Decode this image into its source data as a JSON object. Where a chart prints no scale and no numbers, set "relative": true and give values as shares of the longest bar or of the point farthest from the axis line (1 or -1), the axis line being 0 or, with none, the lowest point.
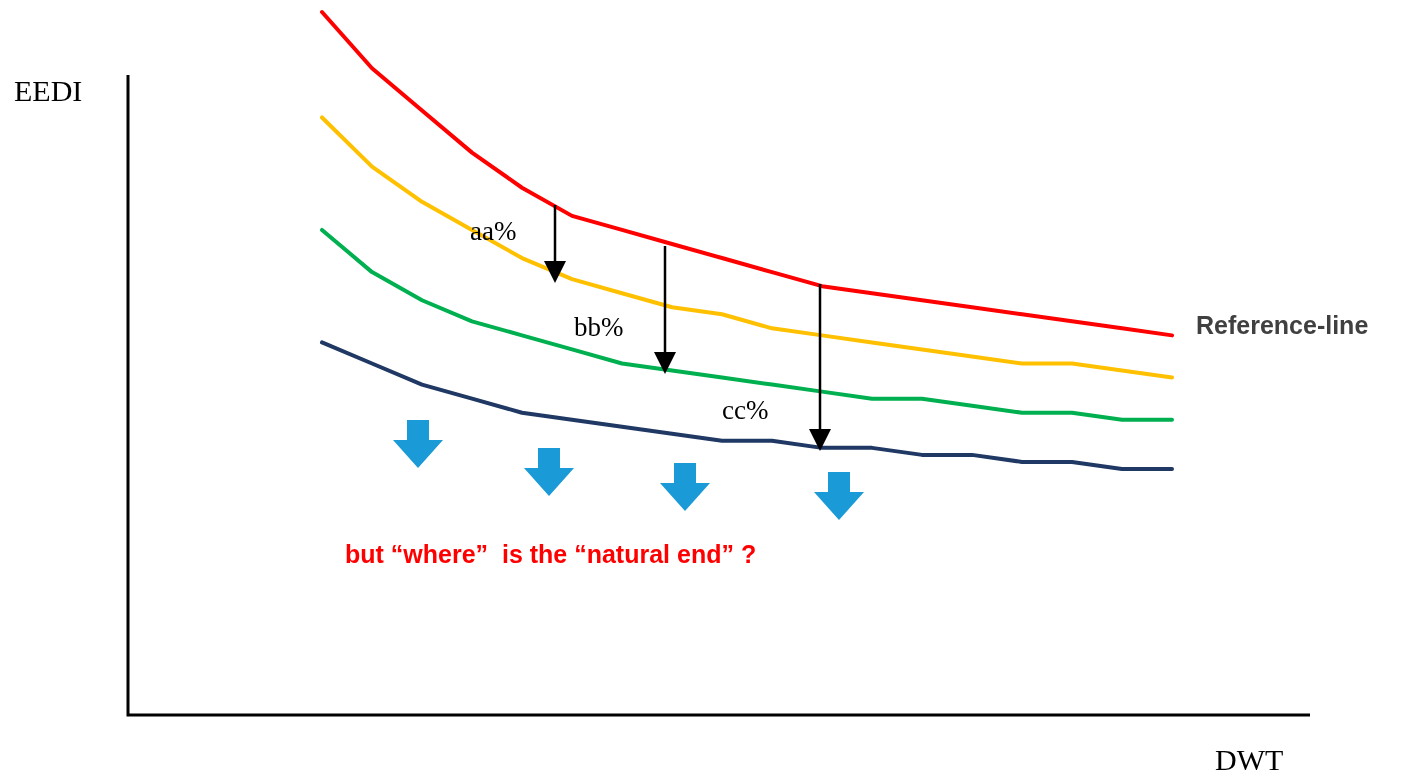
{
  "chart_data": {
    "type": "line",
    "relative": true,
    "xlabel": "DWT",
    "ylabel": "EEDI",
    "grid": false,
    "legend": false,
    "marker": "none",
    "line_style": "solid",
    "categories": [
      null,
      null,
      null,
      null,
      null,
      null,
      null,
      null,
      null,
      null,
      null,
      null,
      null,
      null,
      null,
      null,
      null,
      null,
      null,
      null,
      null,
      null,
      null,
      null,
      null
    ],
    "series": [
      {
        "name": "Reference-line",
        "color": "#ff0000",
        "values": [
          null,
          null,
          null,
          null,
          1.0,
          0.92,
          0.86,
          0.8,
          0.75,
          0.71,
          0.69,
          0.67,
          0.65,
          0.63,
          0.61,
          0.6,
          0.59,
          0.58,
          0.57,
          0.56,
          0.55,
          0.54,
          null,
          null,
          null
        ]
      },
      {
        "color": "#ffc000",
        "values": [
          null,
          null,
          null,
          null,
          0.85,
          0.78,
          0.73,
          0.69,
          0.65,
          0.62,
          0.6,
          0.58,
          0.57,
          0.55,
          0.54,
          0.53,
          0.52,
          0.51,
          0.5,
          0.5,
          0.49,
          0.48,
          null,
          null,
          null
        ]
      },
      {
        "color": "#00b050",
        "values": [
          null,
          null,
          null,
          null,
          0.69,
          0.63,
          0.59,
          0.56,
          0.54,
          0.52,
          0.5,
          0.49,
          0.48,
          0.47,
          0.46,
          0.45,
          0.45,
          0.44,
          0.43,
          0.43,
          0.42,
          0.42,
          null,
          null,
          null
        ]
      },
      {
        "color": "#1f3864",
        "values": [
          null,
          null,
          null,
          null,
          0.53,
          0.5,
          0.47,
          0.45,
          0.43,
          0.42,
          0.41,
          0.4,
          0.39,
          0.39,
          0.38,
          0.38,
          0.37,
          0.37,
          0.36,
          0.36,
          0.35,
          0.35,
          null,
          null,
          null
        ]
      }
    ],
    "annotations": [
      "aa%",
      "bb%",
      "cc%",
      "but “where”  is the “natural end” ?"
    ]
  }
}
